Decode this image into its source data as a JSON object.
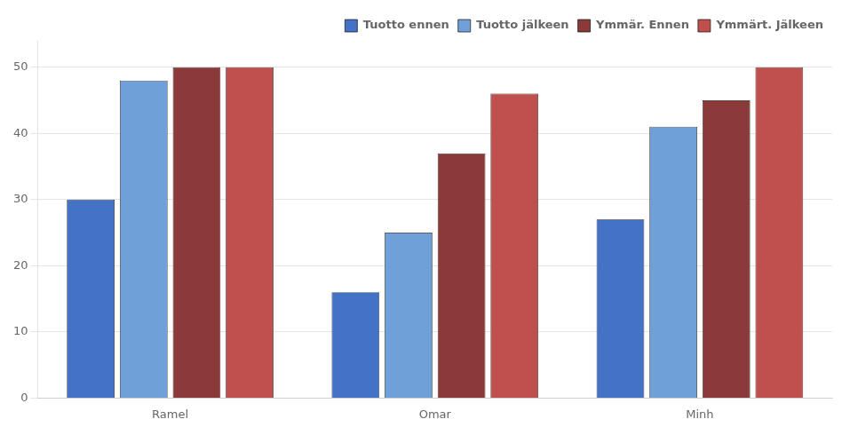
{
  "chart_data": {
    "type": "bar",
    "categories": [
      "Ramel",
      "Omar",
      "Minh"
    ],
    "series": [
      {
        "name": "Tuotto ennen",
        "color": "#4472C4",
        "values": [
          30,
          16,
          27
        ]
      },
      {
        "name": "Tuotto jälkeen",
        "color": "#70A0D8",
        "values": [
          48,
          25,
          41
        ]
      },
      {
        "name": "Ymmär. Ennen",
        "color": "#8B3A3A",
        "values": [
          50,
          37,
          45
        ]
      },
      {
        "name": "Ymmärt. Jälkeen",
        "color": "#C0504D",
        "values": [
          50,
          46,
          50
        ]
      }
    ],
    "ylim": [
      0,
      54
    ],
    "yticks": [
      0,
      10,
      20,
      30,
      40,
      50
    ],
    "grid": true,
    "legend": "upper right"
  }
}
